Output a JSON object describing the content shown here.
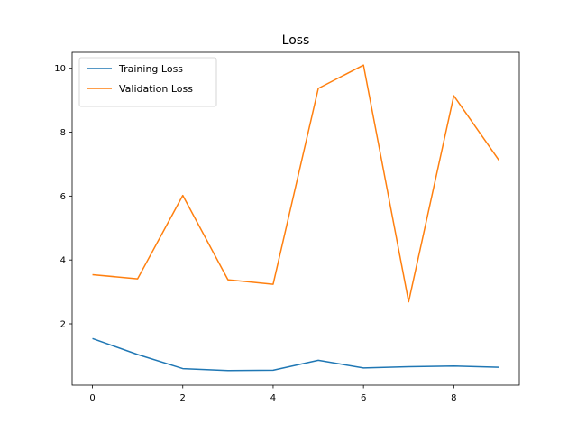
{
  "chart_data": {
    "type": "line",
    "title": "Loss",
    "xlabel": "",
    "ylabel": "",
    "x": [
      0,
      1,
      2,
      3,
      4,
      5,
      6,
      7,
      8,
      9
    ],
    "xlim": [
      -0.45,
      9.45
    ],
    "ylim": [
      0.08,
      10.5
    ],
    "xticks": [
      0,
      2,
      4,
      6,
      8
    ],
    "yticks": [
      2,
      4,
      6,
      8,
      10
    ],
    "grid": false,
    "legend_position": "top-left",
    "series": [
      {
        "name": "Training Loss",
        "color": "#1f77b4",
        "values": [
          1.54,
          1.04,
          0.6,
          0.54,
          0.55,
          0.86,
          0.62,
          0.66,
          0.68,
          0.64
        ]
      },
      {
        "name": "Validation Loss",
        "color": "#ff7f0e",
        "values": [
          3.54,
          3.41,
          6.02,
          3.38,
          3.24,
          9.37,
          10.1,
          2.69,
          9.14,
          7.12
        ]
      }
    ]
  }
}
